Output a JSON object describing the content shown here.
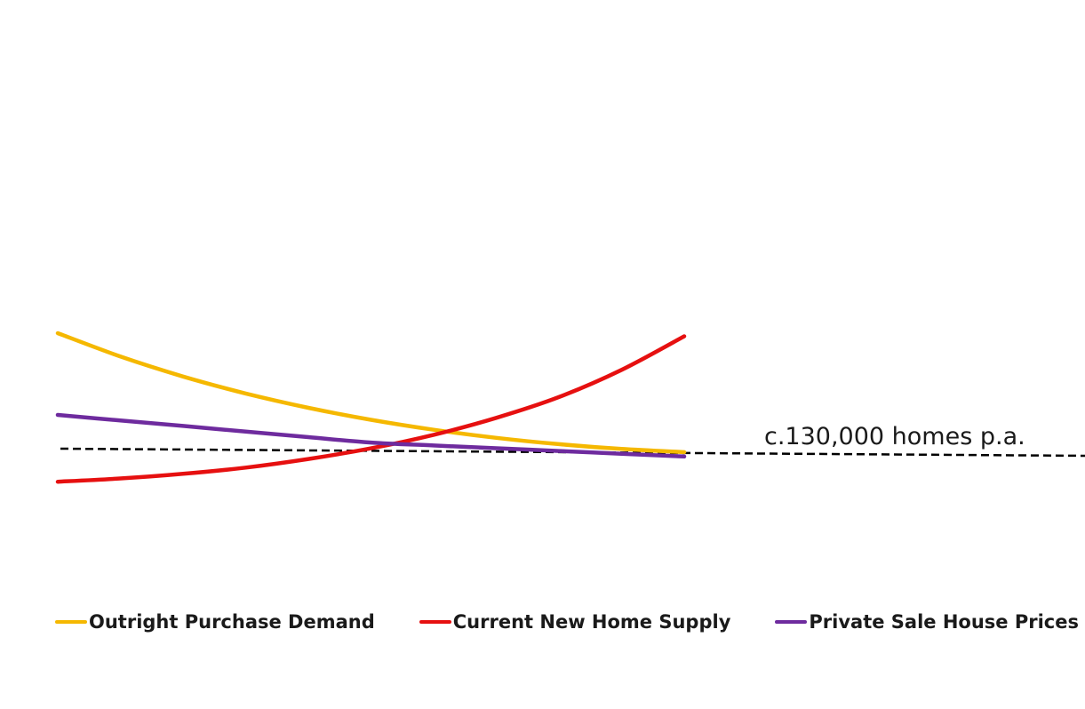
{
  "chart_data": {
    "type": "line",
    "title": "",
    "xlabel": "",
    "ylabel": "",
    "grid": false,
    "legend_placement": "bottom",
    "x": [
      0,
      1,
      2,
      3,
      4,
      5,
      6,
      7,
      8,
      9,
      10
    ],
    "series": [
      {
        "name": "Outright Purchase Demand",
        "color": "#f5b800",
        "values": [
          100,
          79.8,
          62.5,
          47.8,
          35.4,
          25,
          16.4,
          9.4,
          3.9,
          -0.2,
          -3
        ]
      },
      {
        "name": "Current New Home Supply",
        "color": "#e61010",
        "values": [
          -28.6,
          -25.8,
          -21.8,
          -16.4,
          -8.9,
          0.3,
          12,
          26.7,
          44.7,
          68.2,
          97.3
        ]
      },
      {
        "name": "Private Sale House Prices",
        "color": "#6e2b9e",
        "values": [
          29.2,
          24.4,
          19.7,
          14.8,
          10,
          5.3,
          2.8,
          0.4,
          -2,
          -4.4,
          -6.8
        ]
      }
    ],
    "reference_line": {
      "label": "c.130,000 homes p.a.",
      "style": "dashed",
      "color": "#000000"
    }
  }
}
